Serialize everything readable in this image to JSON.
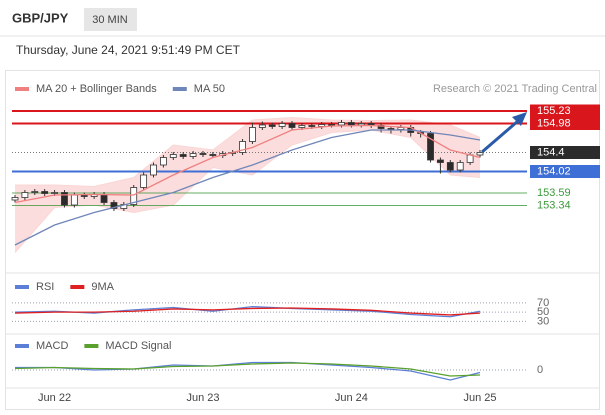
{
  "header": {
    "symbol": "GBP/JPY",
    "timeframe": "30 MIN",
    "datetime": "Thursday, June 24, 2021 9:51:49 PM CET"
  },
  "chart_data": [
    {
      "type": "candlestick",
      "source": "Research © 2021 Trading Central",
      "categories": [
        null,
        null,
        null,
        null,
        "Jun 22",
        null,
        null,
        null,
        null,
        null,
        null,
        null,
        null,
        null,
        null,
        null,
        null,
        null,
        null,
        "Jun 23",
        null,
        null,
        null,
        null,
        null,
        null,
        null,
        null,
        null,
        null,
        null,
        null,
        null,
        null,
        "Jun 24",
        null,
        null,
        null,
        null,
        null,
        null,
        null,
        null,
        null,
        null,
        null,
        null,
        "Jun 25"
      ],
      "open": [
        153.45,
        153.5,
        153.6,
        153.62,
        153.58,
        153.6,
        153.35,
        153.55,
        153.52,
        153.56,
        153.4,
        153.28,
        153.36,
        153.7,
        153.95,
        154.15,
        154.3,
        154.36,
        154.32,
        154.38,
        154.36,
        154.34,
        154.38,
        154.4,
        154.62,
        154.9,
        154.95,
        154.92,
        154.98,
        154.9,
        154.94,
        154.92,
        154.96,
        154.95,
        155.0,
        154.95,
        154.98,
        154.94,
        154.88,
        154.86,
        154.9,
        154.8,
        154.78,
        154.25,
        154.2,
        154.05,
        154.2,
        154.35
      ],
      "high": [
        153.55,
        153.65,
        153.67,
        153.67,
        153.65,
        153.65,
        153.6,
        153.6,
        153.61,
        153.61,
        153.45,
        153.41,
        153.75,
        154.0,
        154.2,
        154.35,
        154.41,
        154.41,
        154.43,
        154.43,
        154.41,
        154.43,
        154.45,
        154.67,
        155.0,
        155.02,
        155.0,
        155.03,
        155.03,
        154.99,
        154.99,
        155.01,
        155.01,
        155.05,
        155.05,
        155.03,
        155.03,
        154.99,
        154.93,
        154.95,
        154.95,
        154.85,
        154.83,
        154.3,
        154.25,
        154.25,
        154.4,
        154.45
      ],
      "low": [
        153.4,
        153.45,
        153.55,
        153.53,
        153.53,
        153.3,
        153.3,
        153.47,
        153.47,
        153.35,
        153.23,
        153.23,
        153.31,
        153.65,
        153.9,
        154.1,
        154.25,
        154.27,
        154.27,
        154.31,
        154.29,
        154.29,
        154.33,
        154.35,
        154.57,
        154.85,
        154.87,
        154.87,
        154.85,
        154.85,
        154.87,
        154.87,
        154.9,
        154.9,
        154.9,
        154.9,
        154.89,
        154.8,
        154.78,
        154.8,
        154.72,
        154.7,
        154.2,
        153.98,
        154.0,
        154.0,
        154.15,
        154.3
      ],
      "close": [
        153.5,
        153.6,
        153.62,
        153.58,
        153.6,
        153.35,
        153.55,
        153.52,
        153.56,
        153.4,
        153.28,
        153.36,
        153.7,
        153.95,
        154.15,
        154.3,
        154.36,
        154.32,
        154.38,
        154.36,
        154.34,
        154.38,
        154.4,
        154.62,
        154.9,
        154.95,
        154.92,
        154.98,
        154.9,
        154.94,
        154.92,
        154.96,
        154.95,
        155.0,
        154.95,
        154.98,
        154.94,
        154.88,
        154.86,
        154.9,
        154.8,
        154.78,
        154.25,
        154.2,
        154.05,
        154.2,
        154.35,
        154.4
      ],
      "up_color": "#ffffff",
      "down_color": "#2b2b2b",
      "series": [
        {
          "name": "MA 20 + Bollinger Bands",
          "color": "#f08080",
          "band_color": "#fbd5d5",
          "x": [
            0,
            4,
            8,
            12,
            16,
            20,
            24,
            28,
            32,
            36,
            40,
            44,
            47
          ],
          "values": [
            153.4,
            153.55,
            153.56,
            153.55,
            153.95,
            154.3,
            154.5,
            154.85,
            154.93,
            154.94,
            154.9,
            154.45,
            154.3
          ],
          "upper": [
            153.75,
            153.75,
            153.72,
            153.9,
            154.55,
            154.45,
            155.05,
            155.1,
            155.05,
            155.04,
            155.05,
            154.95,
            154.7
          ],
          "lower": [
            152.4,
            153.3,
            153.35,
            153.2,
            153.35,
            154.1,
            153.95,
            154.55,
            154.8,
            154.85,
            154.7,
            153.95,
            153.9
          ]
        },
        {
          "name": "MA 50",
          "color": "#6f86b8",
          "x": [
            0,
            4,
            8,
            12,
            16,
            20,
            24,
            28,
            32,
            36,
            40,
            44,
            47
          ],
          "values": [
            152.55,
            152.95,
            153.2,
            153.4,
            153.6,
            153.9,
            154.15,
            154.45,
            154.7,
            154.85,
            154.85,
            154.75,
            154.65
          ]
        }
      ],
      "levels": [
        {
          "value": 155.23,
          "color": "#d8161b",
          "style": "solid",
          "box": true
        },
        {
          "value": 154.98,
          "color": "#d8161b",
          "style": "solid",
          "box": true
        },
        {
          "value": 154.4,
          "color": "#2b2b2b",
          "style": "dotted",
          "box": true
        },
        {
          "value": 154.02,
          "color": "#3e6fd6",
          "style": "solid",
          "box": true
        },
        {
          "value": 153.59,
          "color": "#3d9a3d",
          "style": "thin",
          "box": false
        },
        {
          "value": 153.34,
          "color": "#3d9a3d",
          "style": "thin",
          "box": false
        }
      ],
      "ylim": [
        152.1,
        155.45
      ]
    },
    {
      "type": "line",
      "series": [
        {
          "name": "RSI",
          "color": "#5b7fd6",
          "x": [
            0,
            4,
            8,
            12,
            16,
            20,
            24,
            28,
            32,
            36,
            40,
            44,
            47
          ],
          "values": [
            50,
            52,
            48,
            55,
            60,
            52,
            62,
            58,
            55,
            52,
            45,
            40,
            52
          ]
        },
        {
          "name": "9MA",
          "color": "#e02020",
          "x": [
            0,
            4,
            8,
            12,
            16,
            20,
            24,
            28,
            32,
            36,
            40,
            44,
            47
          ],
          "values": [
            48,
            50,
            50,
            52,
            57,
            55,
            58,
            59,
            57,
            54,
            48,
            44,
            48
          ]
        }
      ],
      "ylim": [
        20,
        85
      ],
      "yticks": [
        30,
        50,
        70
      ]
    },
    {
      "type": "line",
      "series": [
        {
          "name": "MACD",
          "color": "#5b7fd6",
          "x": [
            0,
            4,
            8,
            12,
            16,
            20,
            24,
            28,
            32,
            36,
            40,
            44,
            47
          ],
          "values": [
            0.05,
            0.05,
            0,
            0.02,
            0.1,
            0.08,
            0.15,
            0.15,
            0.1,
            0.05,
            -0.02,
            -0.2,
            -0.05
          ]
        },
        {
          "name": "MACD Signal",
          "color": "#5aa02c",
          "x": [
            0,
            4,
            8,
            12,
            16,
            20,
            24,
            28,
            32,
            36,
            40,
            44,
            47
          ],
          "values": [
            0.03,
            0.05,
            0.03,
            0.02,
            0.07,
            0.08,
            0.12,
            0.14,
            0.12,
            0.08,
            0.02,
            -0.12,
            -0.1
          ]
        }
      ],
      "ylim": [
        -0.3,
        0.3
      ],
      "yticks": [
        0
      ]
    }
  ]
}
